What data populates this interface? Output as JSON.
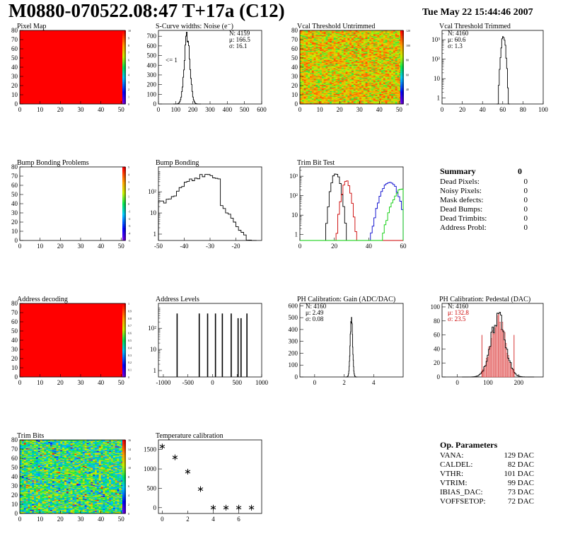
{
  "header": {
    "title": "M0880-070522.08:47 T+17a (C12)",
    "date": "Tue May 22 15:44:46 2007"
  },
  "summary": {
    "title": "Summary",
    "value": "0",
    "rows": [
      {
        "label": "Dead Pixels:",
        "value": "0"
      },
      {
        "label": "Noisy Pixels:",
        "value": "0"
      },
      {
        "label": "Mask defects:",
        "value": "0"
      },
      {
        "label": "Dead Bumps:",
        "value": "0"
      },
      {
        "label": "Dead Trimbits:",
        "value": "0"
      },
      {
        "label": "Address Probl:",
        "value": "0"
      }
    ]
  },
  "op_params": {
    "title": "Op. Parameters",
    "rows": [
      {
        "label": "VANA:",
        "value": "129 DAC"
      },
      {
        "label": "CALDEL:",
        "value": "82 DAC"
      },
      {
        "label": "VTHR:",
        "value": "101 DAC"
      },
      {
        "label": "VTRIM:",
        "value": "99 DAC"
      },
      {
        "label": "IBIAS_DAC:",
        "value": "73 DAC"
      },
      {
        "label": "VOFFSETOP:",
        "value": "72 DAC"
      }
    ]
  },
  "colors": {
    "red": "#ff0000",
    "black": "#000000",
    "blue": "#0000cc",
    "green": "#00cc00",
    "darkred": "#cc0000"
  },
  "chart_data": [
    {
      "id": "pixel-map",
      "type": "heatmap",
      "title": "Pixel Map",
      "xlim": [
        0,
        52
      ],
      "ylim": [
        0,
        80
      ],
      "xticks": [
        0,
        10,
        20,
        30,
        40,
        50
      ],
      "yticks": [
        0,
        10,
        20,
        30,
        40,
        50,
        60,
        70,
        80
      ],
      "fill": "uniform-red",
      "zlim": [
        0,
        10
      ],
      "zticks": [
        "0",
        "1",
        "2",
        "3",
        "4",
        "5",
        "6",
        "7",
        "8",
        "9",
        "10"
      ]
    },
    {
      "id": "scurve-noise",
      "type": "histogram",
      "title": "S-Curve widths: Noise (e⁻)",
      "xlim": [
        0,
        600
      ],
      "ylim": [
        0,
        760
      ],
      "xticks": [
        0,
        100,
        200,
        300,
        400,
        500,
        600
      ],
      "yticks": [
        0,
        100,
        200,
        300,
        400,
        500,
        600,
        700
      ],
      "stats": [
        "N: 4159",
        "μ: 166.5",
        "σ: 16.1"
      ],
      "annotation": "<= 1",
      "peak": {
        "mu": 166.5,
        "sigma": 16.1,
        "height": 700
      }
    },
    {
      "id": "vcal-untrimmed",
      "type": "heatmap",
      "title": "Vcal Threshold Untrimmed",
      "xlim": [
        0,
        52
      ],
      "ylim": [
        0,
        80
      ],
      "xticks": [
        0,
        10,
        20,
        30,
        40,
        50
      ],
      "yticks": [
        0,
        10,
        20,
        30,
        40,
        50,
        60,
        70,
        80
      ],
      "fill": "noisy-orange",
      "zlim": [
        0,
        120
      ],
      "zticks": [
        "20",
        "40",
        "60",
        "80",
        "100",
        "120"
      ]
    },
    {
      "id": "vcal-trimmed",
      "type": "histogram",
      "log": true,
      "title": "Vcal Threshold Trimmed",
      "xlim": [
        0,
        100
      ],
      "ylim": [
        0.5,
        3000
      ],
      "xticks": [
        0,
        20,
        40,
        60,
        80,
        100
      ],
      "yticks": [
        "1",
        "10",
        "10²",
        "10³"
      ],
      "stats": [
        "N: 4160",
        "μ: 60.6",
        "σ:  1.3"
      ],
      "peak": {
        "mu": 60.6,
        "sigma": 1.3,
        "height": 1500
      }
    },
    {
      "id": "bump-problems",
      "type": "heatmap",
      "title": "Bump Bonding Problems",
      "xlim": [
        0,
        52
      ],
      "ylim": [
        0,
        80
      ],
      "xticks": [
        0,
        10,
        20,
        30,
        40,
        50
      ],
      "yticks": [
        0,
        10,
        20,
        30,
        40,
        50,
        60,
        70,
        80
      ],
      "fill": "empty",
      "zlim": [
        -5,
        5
      ],
      "zticks": [
        "-5",
        "-4",
        "-3",
        "-2",
        "-1",
        "0",
        "1",
        "2",
        "3",
        "4",
        "5"
      ]
    },
    {
      "id": "bump-bonding",
      "type": "histogram",
      "log": true,
      "title": "Bump Bonding",
      "xlim": [
        -50,
        -10
      ],
      "ylim": [
        0.5,
        1500
      ],
      "xticks": [
        -50,
        -40,
        -30,
        -20
      ],
      "yticks": [
        "1",
        "10",
        "10²"
      ],
      "shape": "bump"
    },
    {
      "id": "trim-bit-test",
      "type": "histogram",
      "log": true,
      "title": "Trim Bit Test",
      "xlim": [
        0,
        60
      ],
      "ylim": [
        0.5,
        3000
      ],
      "xticks": [
        0,
        20,
        40,
        60
      ],
      "yticks": [
        "1",
        "10",
        "10²",
        "10³"
      ],
      "series": [
        {
          "color": "#000000",
          "mu": 21,
          "sigma": 1.6,
          "h": 1500
        },
        {
          "color": "#cc0000",
          "mu": 27,
          "sigma": 1.6,
          "h": 500
        },
        {
          "color": "#0000cc",
          "mu": 52,
          "sigma": 3,
          "h": 500
        },
        {
          "color": "#00cc00",
          "mu": 60,
          "sigma": 3.5,
          "h": 250
        }
      ]
    },
    {
      "id": "address-decoding",
      "type": "heatmap",
      "title": "Address decoding",
      "xlim": [
        0,
        52
      ],
      "ylim": [
        0,
        80
      ],
      "xticks": [
        0,
        10,
        20,
        30,
        40,
        50
      ],
      "yticks": [
        0,
        10,
        20,
        30,
        40,
        50,
        60,
        70,
        80
      ],
      "fill": "uniform-red",
      "zlim": [
        0,
        1
      ],
      "zticks": [
        "0",
        "0.1",
        "0.2",
        "0.3",
        "0.4",
        "0.5",
        "0.6",
        "0.7",
        "0.8",
        "0.9",
        "1"
      ]
    },
    {
      "id": "address-levels",
      "type": "histogram",
      "log": true,
      "title": "Address Levels",
      "xlim": [
        -1100,
        1000
      ],
      "ylim": [
        0.5,
        1500
      ],
      "xticks": [
        -1000,
        -500,
        0,
        500,
        1000
      ],
      "yticks": [
        "1",
        "10",
        "10²"
      ],
      "spikes": [
        -720,
        -270,
        -100,
        60,
        200,
        380,
        520,
        580,
        700
      ]
    },
    {
      "id": "ph-gain",
      "type": "histogram",
      "title": "PH Calibration: Gain (ADC/DAC)",
      "xlim": [
        -1,
        6
      ],
      "ylim": [
        0,
        620
      ],
      "xticks": [
        0,
        2,
        4
      ],
      "yticks": [
        0,
        100,
        200,
        300,
        400,
        500,
        600
      ],
      "stats": [
        "N: 4160",
        "μ: 2.49",
        "σ: 0.08"
      ],
      "peak": {
        "mu": 2.49,
        "sigma": 0.08,
        "height": 500
      }
    },
    {
      "id": "ph-pedestal",
      "type": "histogram",
      "title": "PH Calibration: Pedestal (DAC)",
      "xlim": [
        -50,
        280
      ],
      "ylim": [
        0,
        105
      ],
      "xticks": [
        0,
        100,
        200
      ],
      "yticks": [
        0,
        20,
        40,
        60,
        80,
        100
      ],
      "stats": [
        "N: 4160",
        "μ: 132.8",
        "σ: 23.5"
      ],
      "stats_colors": [
        "#000000",
        "#cc0000",
        "#cc0000"
      ],
      "peak": {
        "mu": 132.8,
        "sigma": 23.5,
        "height": 85
      },
      "cut_lines": [
        80,
        185
      ],
      "cut_height": 60
    },
    {
      "id": "trim-bits",
      "type": "heatmap",
      "title": "Trim Bits",
      "xlim": [
        0,
        52
      ],
      "ylim": [
        0,
        80
      ],
      "xticks": [
        0,
        10,
        20,
        30,
        40,
        50
      ],
      "yticks": [
        0,
        10,
        20,
        30,
        40,
        50,
        60,
        70,
        80
      ],
      "fill": "noisy-green",
      "zlim": [
        0,
        16
      ],
      "zticks": [
        "0",
        "2",
        "4",
        "6",
        "8",
        "10",
        "12",
        "14",
        "16"
      ]
    },
    {
      "id": "temperature-calibration",
      "type": "scatter",
      "title": "Temperature calibration",
      "xlim": [
        -0.3,
        7.8
      ],
      "ylim": [
        -150,
        1750
      ],
      "xticks": [
        0,
        2,
        4,
        6
      ],
      "yticks": [
        0,
        500,
        1000,
        1500
      ],
      "x": [
        0,
        1,
        2,
        3,
        4,
        5,
        6,
        7
      ],
      "y": [
        1580,
        1300,
        930,
        480,
        0,
        0,
        0,
        0
      ]
    }
  ]
}
